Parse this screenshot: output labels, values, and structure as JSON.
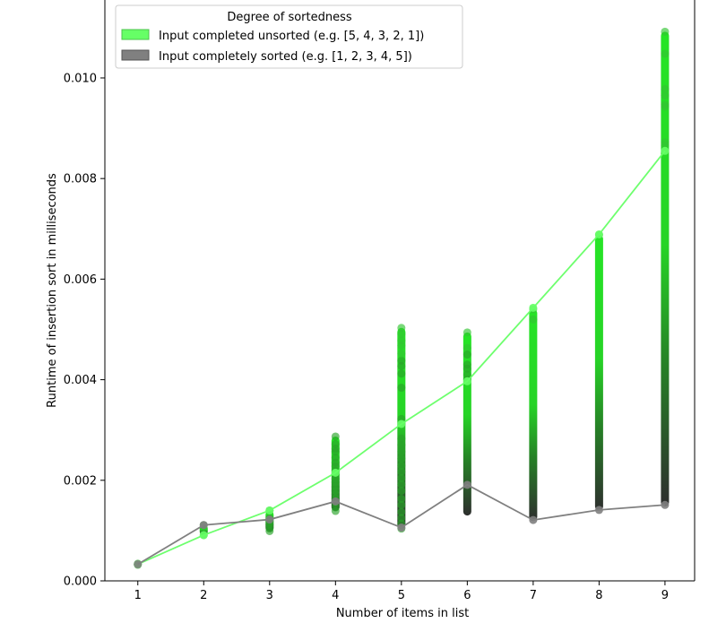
{
  "chart_data": {
    "type": "scatter",
    "xlabel": "Number of items in list",
    "ylabel": "Runtime of insertion sort in milliseconds",
    "xlim": [
      0.5,
      9.45
    ],
    "ylim": [
      0,
      0.01155
    ],
    "x_ticks": [
      "1",
      "2",
      "3",
      "4",
      "5",
      "6",
      "7",
      "8",
      "9"
    ],
    "y_ticks": [
      "0.000",
      "0.002",
      "0.004",
      "0.006",
      "0.008",
      "0.010"
    ],
    "y_tick_values": [
      0,
      0.002,
      0.004,
      0.006,
      0.008,
      0.01
    ],
    "legend": {
      "title": "Degree of sortedness",
      "placement": "top-left",
      "entries": [
        {
          "label": "Input completed unsorted (e.g. [5, 4, 3, 2, 1])",
          "color": "#66ff66"
        },
        {
          "label": "Input completely sorted (e.g. [1, 2, 3, 4, 5])",
          "color": "#808080"
        }
      ]
    },
    "series": [
      {
        "name": "Input completed unsorted (e.g. [5, 4, 3, 2, 1])",
        "color": "#66ff66",
        "x": [
          1,
          2,
          3,
          4,
          5,
          6,
          7,
          8,
          9
        ],
        "y": [
          0.00033,
          0.00091,
          0.0014,
          0.00215,
          0.00312,
          0.00397,
          0.00543,
          0.00689,
          0.00855
        ]
      },
      {
        "name": "Input completely sorted (e.g. [1, 2, 3, 4, 5])",
        "color": "#808080",
        "x": [
          1,
          2,
          3,
          4,
          5,
          6,
          7,
          8,
          9
        ],
        "y": [
          0.00033,
          0.00111,
          0.00122,
          0.00158,
          0.00106,
          0.00191,
          0.00121,
          0.00141,
          0.00151
        ]
      }
    ],
    "scatter_groups": [
      {
        "x": 1,
        "min": 0.00031,
        "max": 0.00035,
        "points": [
          0.00032,
          0.00034
        ]
      },
      {
        "x": 2,
        "min": 0.0009,
        "max": 0.00112,
        "points": [
          0.00091,
          0.00111
        ]
      },
      {
        "x": 3,
        "min": 0.00098,
        "max": 0.0014,
        "points": [
          0.00099,
          0.00104,
          0.00112,
          0.00118,
          0.00124,
          0.0014
        ]
      },
      {
        "x": 4,
        "min": 0.00139,
        "max": 0.00287,
        "points": [
          0.00139,
          0.00146,
          0.00155,
          0.00164,
          0.00172,
          0.00179,
          0.00187,
          0.00196,
          0.00203,
          0.00212,
          0.00219,
          0.00228,
          0.00235,
          0.00245,
          0.00257,
          0.00263,
          0.00272,
          0.00287
        ]
      },
      {
        "x": 5,
        "min": 0.00104,
        "max": 0.00503,
        "points": [
          0.00104,
          0.00114,
          0.00125,
          0.00137,
          0.00151,
          0.00163,
          0.00179,
          0.00192,
          0.00204,
          0.00217,
          0.00229,
          0.00243,
          0.00257,
          0.0027,
          0.00283,
          0.00312,
          0.00322,
          0.00384,
          0.00412,
          0.00427,
          0.00438,
          0.00452,
          0.00468,
          0.00478,
          0.00491,
          0.00503
        ]
      },
      {
        "x": 6,
        "min": 0.0013,
        "max": 0.00494,
        "points": [
          0.00494,
          0.00463,
          0.0045,
          0.0043,
          0.00422,
          0.0041,
          0.004
        ]
      },
      {
        "x": 7,
        "min": 0.00119,
        "max": 0.0054,
        "points": [
          0.0054,
          0.0052
        ]
      },
      {
        "x": 8,
        "min": 0.0014,
        "max": 0.00688,
        "points": [
          0.00688
        ]
      },
      {
        "x": 9,
        "min": 0.00148,
        "max": 0.01092,
        "points": [
          0.01092,
          0.01048,
          0.00978,
          0.00965,
          0.00947,
          0.00943,
          0.00872,
          0.00866,
          0.00855
        ]
      }
    ]
  }
}
